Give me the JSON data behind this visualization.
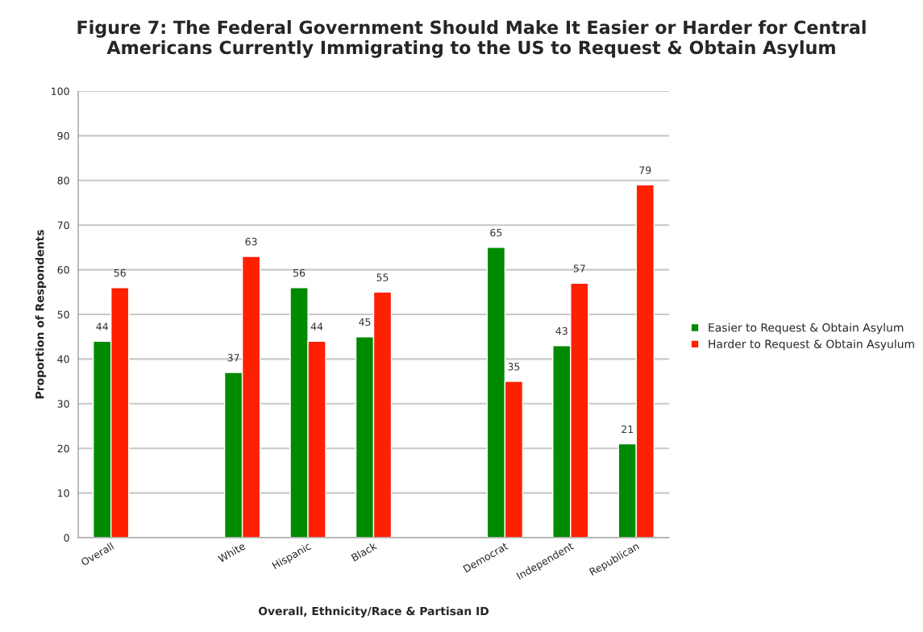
{
  "chart_data": {
    "type": "bar",
    "title": "Figure 7: The Federal Government Should Make It Easier or Harder for Central\nAmericans Currently Immigrating to the US to Request & Obtain Asylum",
    "xlabel": "Overall, Ethnicity/Race & Partisan ID",
    "ylabel": "Proportion of Respondents",
    "categories": [
      "Overall",
      null,
      "White",
      "Hispanic",
      "Black",
      null,
      "Democrat",
      "Independent",
      "Republican"
    ],
    "series": [
      {
        "name": "Easier to Request & Obtain Asylum",
        "color": "#008a00",
        "values": [
          44,
          null,
          37,
          56,
          45,
          null,
          65,
          43,
          21
        ]
      },
      {
        "name": "Harder to Request & Obtain Asyulum",
        "color": "#ff2000",
        "values": [
          56,
          null,
          63,
          44,
          55,
          null,
          35,
          57,
          79
        ]
      }
    ],
    "ylim": [
      0,
      100
    ],
    "yticks": [
      0,
      10,
      20,
      30,
      40,
      50,
      60,
      70,
      80,
      90,
      100
    ],
    "grid": "y",
    "legend": "right",
    "data_labels": true
  }
}
